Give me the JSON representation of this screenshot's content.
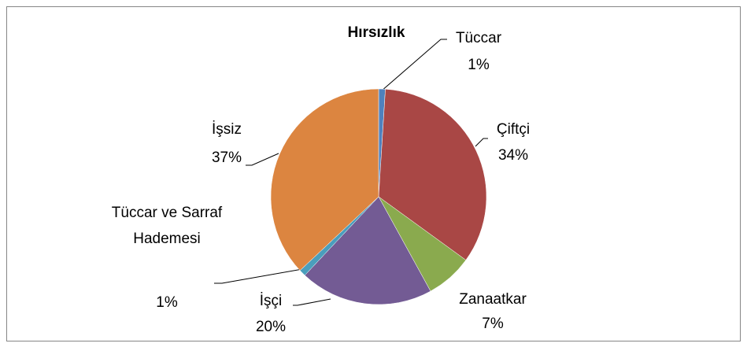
{
  "chart_data": {
    "type": "pie",
    "title": "Hırsızlık",
    "categories": [
      "Tüccar",
      "Çiftçi",
      "Zanaatkar",
      "İşçi",
      "Tüccar ve Sarraf Hademesi",
      "İşsiz"
    ],
    "values": [
      1,
      34,
      7,
      20,
      1,
      37
    ],
    "value_labels": [
      "1%",
      "34%",
      "7%",
      "20%",
      "1%",
      "37%"
    ],
    "colors": [
      "#4f81bd",
      "#a94745",
      "#8aaa4e",
      "#735b94",
      "#4a9ebc",
      "#dc8540"
    ]
  }
}
